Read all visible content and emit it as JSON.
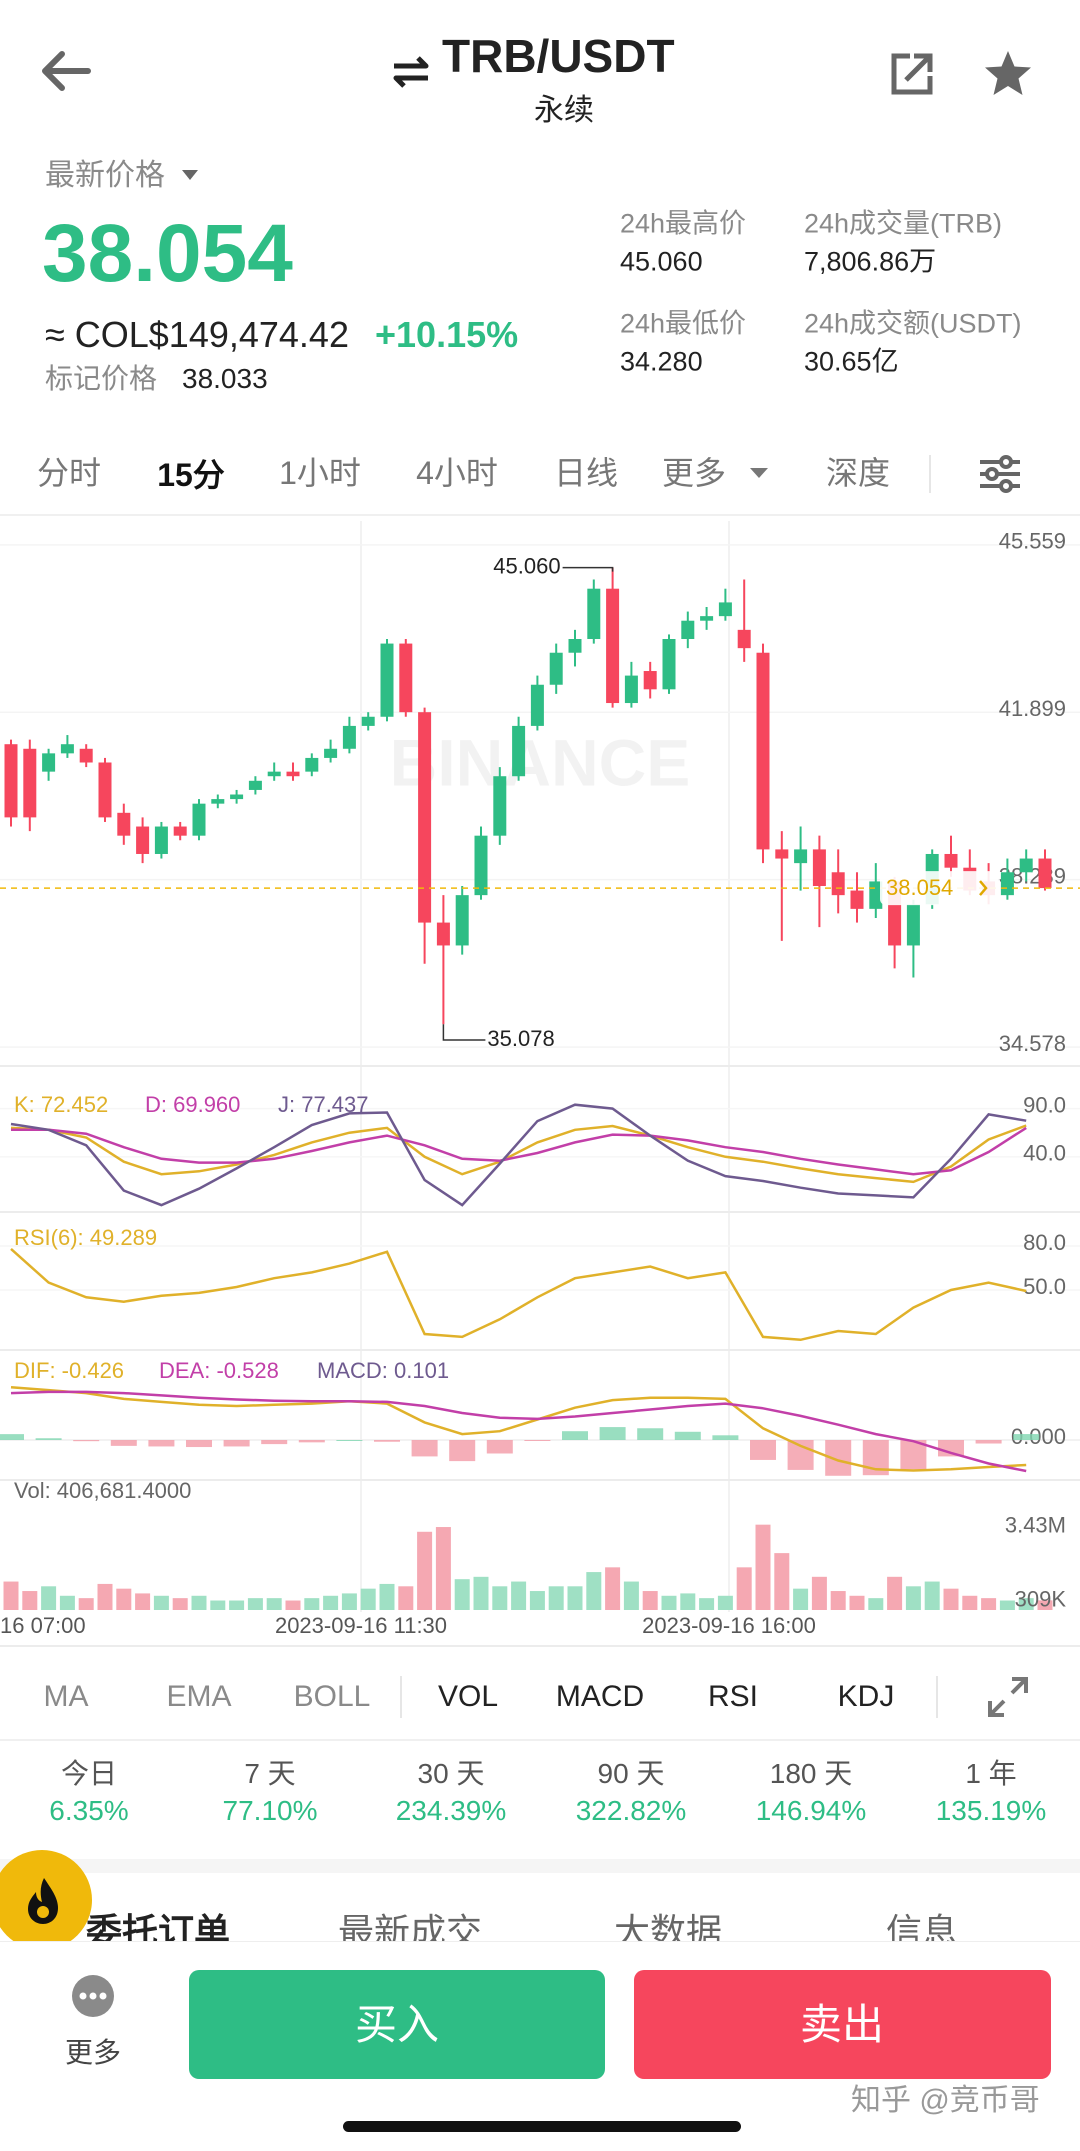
{
  "header": {
    "title": "TRB/USDT",
    "subtitle": "永续"
  },
  "ticker": {
    "label": "最新价格",
    "price": "38.054",
    "fiat": "≈ COL$149,474.42",
    "change": "+10.15%",
    "mark_label": "标记价格",
    "mark_price": "38.033"
  },
  "stats": [
    {
      "label": "24h最高价",
      "value": "45.060"
    },
    {
      "label": "24h成交量(TRB)",
      "value": "7,806.86万"
    },
    {
      "label": "24h最低价",
      "value": "34.280"
    },
    {
      "label": "24h成交额(USDT)",
      "value": "30.65亿"
    }
  ],
  "timeframes": [
    "分时",
    "15分",
    "1小时",
    "4小时",
    "日线",
    "更多",
    "深度"
  ],
  "chart_data": {
    "type": "candlestick",
    "watermark": "BINANCE",
    "up_color": "#2ebd85",
    "down_color": "#f6465d",
    "ylim": [
      34.23,
      46.08
    ],
    "yticks": [
      45.559,
      41.899,
      38.239,
      34.578
    ],
    "last_price": 38.054,
    "high_label": {
      "value": 45.06,
      "label": "45.060"
    },
    "low_label": {
      "value": 35.078,
      "label": "35.078"
    },
    "x_labels": [
      "16 07:00",
      "2023-09-16 11:30",
      "2023-09-16 16:00"
    ],
    "candles": [
      {
        "open": 41.2,
        "high": 41.3,
        "low": 39.4,
        "close": 39.6
      },
      {
        "open": 41.1,
        "high": 41.3,
        "low": 39.3,
        "close": 39.6
      },
      {
        "open": 40.6,
        "high": 41.1,
        "low": 40.4,
        "close": 41.0
      },
      {
        "open": 41.0,
        "high": 41.4,
        "low": 40.9,
        "close": 41.2
      },
      {
        "open": 41.1,
        "high": 41.2,
        "low": 40.7,
        "close": 40.8
      },
      {
        "open": 40.8,
        "high": 40.9,
        "low": 39.5,
        "close": 39.6
      },
      {
        "open": 39.7,
        "high": 39.9,
        "low": 39.0,
        "close": 39.2
      },
      {
        "open": 39.4,
        "high": 39.6,
        "low": 38.6,
        "close": 38.8
      },
      {
        "open": 38.8,
        "high": 39.5,
        "low": 38.7,
        "close": 39.4
      },
      {
        "open": 39.4,
        "high": 39.5,
        "low": 39.1,
        "close": 39.2
      },
      {
        "open": 39.2,
        "high": 40.0,
        "low": 39.1,
        "close": 39.9
      },
      {
        "open": 39.9,
        "high": 40.1,
        "low": 39.8,
        "close": 40.0
      },
      {
        "open": 40.0,
        "high": 40.2,
        "low": 39.9,
        "close": 40.1
      },
      {
        "open": 40.2,
        "high": 40.5,
        "low": 40.1,
        "close": 40.4
      },
      {
        "open": 40.5,
        "high": 40.8,
        "low": 40.4,
        "close": 40.6
      },
      {
        "open": 40.6,
        "high": 40.8,
        "low": 40.4,
        "close": 40.5
      },
      {
        "open": 40.6,
        "high": 41.0,
        "low": 40.5,
        "close": 40.9
      },
      {
        "open": 40.9,
        "high": 41.3,
        "low": 40.8,
        "close": 41.1
      },
      {
        "open": 41.1,
        "high": 41.8,
        "low": 41.0,
        "close": 41.6
      },
      {
        "open": 41.6,
        "high": 41.9,
        "low": 41.5,
        "close": 41.8
      },
      {
        "open": 41.8,
        "high": 43.5,
        "low": 41.7,
        "close": 43.4
      },
      {
        "open": 43.4,
        "high": 43.5,
        "low": 41.8,
        "close": 41.9
      },
      {
        "open": 41.9,
        "high": 42.0,
        "low": 36.4,
        "close": 37.3
      },
      {
        "open": 37.3,
        "high": 37.9,
        "low": 35.078,
        "close": 36.8
      },
      {
        "open": 36.8,
        "high": 38.1,
        "low": 36.6,
        "close": 37.9
      },
      {
        "open": 37.9,
        "high": 39.4,
        "low": 37.8,
        "close": 39.2
      },
      {
        "open": 39.2,
        "high": 40.7,
        "low": 39.0,
        "close": 40.5
      },
      {
        "open": 40.5,
        "high": 41.8,
        "low": 40.4,
        "close": 41.6
      },
      {
        "open": 41.6,
        "high": 42.7,
        "low": 41.5,
        "close": 42.5
      },
      {
        "open": 42.5,
        "high": 43.4,
        "low": 42.3,
        "close": 43.2
      },
      {
        "open": 43.2,
        "high": 43.7,
        "low": 42.9,
        "close": 43.5
      },
      {
        "open": 43.5,
        "high": 44.8,
        "low": 43.4,
        "close": 44.6
      },
      {
        "open": 44.6,
        "high": 45.06,
        "low": 42.0,
        "close": 42.1
      },
      {
        "open": 42.1,
        "high": 43.0,
        "low": 42.0,
        "close": 42.7
      },
      {
        "open": 42.8,
        "high": 43.0,
        "low": 42.2,
        "close": 42.4
      },
      {
        "open": 42.4,
        "high": 43.6,
        "low": 42.3,
        "close": 43.5
      },
      {
        "open": 43.5,
        "high": 44.1,
        "low": 43.3,
        "close": 43.9
      },
      {
        "open": 43.9,
        "high": 44.2,
        "low": 43.7,
        "close": 44.0
      },
      {
        "open": 44.0,
        "high": 44.6,
        "low": 43.9,
        "close": 44.3
      },
      {
        "open": 43.7,
        "high": 44.8,
        "low": 43.0,
        "close": 43.3
      },
      {
        "open": 43.2,
        "high": 43.4,
        "low": 38.6,
        "close": 38.9
      },
      {
        "open": 38.9,
        "high": 39.3,
        "low": 36.9,
        "close": 38.7
      },
      {
        "open": 38.6,
        "high": 39.4,
        "low": 38.0,
        "close": 38.9
      },
      {
        "open": 38.9,
        "high": 39.2,
        "low": 37.2,
        "close": 38.1
      },
      {
        "open": 38.4,
        "high": 38.9,
        "low": 37.5,
        "close": 37.9
      },
      {
        "open": 38.0,
        "high": 38.4,
        "low": 37.3,
        "close": 37.6
      },
      {
        "open": 37.6,
        "high": 38.6,
        "low": 37.4,
        "close": 38.2
      },
      {
        "open": 38.2,
        "high": 38.3,
        "low": 36.3,
        "close": 36.8
      },
      {
        "open": 36.8,
        "high": 37.8,
        "low": 36.1,
        "close": 37.7
      },
      {
        "open": 37.7,
        "high": 38.9,
        "low": 37.6,
        "close": 38.8
      },
      {
        "open": 38.8,
        "high": 39.2,
        "low": 38.3,
        "close": 38.5
      },
      {
        "open": 38.5,
        "high": 38.9,
        "low": 37.9,
        "close": 38.0
      },
      {
        "open": 38.2,
        "high": 38.6,
        "low": 37.7,
        "close": 37.9
      },
      {
        "open": 37.9,
        "high": 38.7,
        "low": 37.8,
        "close": 38.4
      },
      {
        "open": 38.4,
        "high": 38.9,
        "low": 38.2,
        "close": 38.7
      },
      {
        "open": 38.7,
        "high": 38.9,
        "low": 38.0,
        "close": 38.054
      }
    ],
    "kdj": {
      "ylim": [
        -12,
        130
      ],
      "yticks": [
        {
          "value": 90,
          "label": "90.0"
        },
        {
          "value": 40,
          "label": "40.0"
        }
      ],
      "series": [
        {
          "name": "K: 72.452",
          "color": "#e0b12a",
          "values": [
            70,
            68,
            60,
            35,
            22,
            25,
            32,
            42,
            55,
            65,
            70,
            40,
            22,
            35,
            55,
            68,
            72,
            62,
            50,
            40,
            35,
            28,
            22,
            18,
            14,
            30,
            58,
            72.452
          ]
        },
        {
          "name": "D: 69.960",
          "color": "#c23fa8",
          "values": [
            68,
            68,
            64,
            50,
            38,
            34,
            34,
            38,
            46,
            55,
            62,
            52,
            38,
            36,
            44,
            55,
            63,
            62,
            57,
            50,
            45,
            38,
            32,
            27,
            22,
            26,
            45,
            69.96
          ]
        },
        {
          "name": "J: 77.437",
          "color": "#6e5a8f",
          "values": [
            74,
            68,
            52,
            5,
            -10,
            7,
            28,
            50,
            73,
            85,
            86,
            16,
            -10,
            33,
            77,
            94,
            90,
            62,
            36,
            20,
            15,
            8,
            2,
            0,
            -2,
            38,
            84,
            77.437
          ]
        }
      ]
    },
    "rsi": {
      "ylim": [
        7.7,
        101.8
      ],
      "yticks": [
        {
          "value": 80,
          "label": "80.0"
        },
        {
          "value": 50,
          "label": "50.0"
        }
      ],
      "series": [
        {
          "name": "RSI(6): 49.289",
          "color": "#e0b12a",
          "values": [
            78,
            55,
            45,
            42,
            46,
            48,
            52,
            58,
            62,
            68,
            76,
            20,
            18,
            30,
            45,
            58,
            62,
            66,
            58,
            62,
            18,
            16,
            22,
            20,
            38,
            50,
            55,
            49.289
          ]
        }
      ]
    },
    "macd": {
      "ylim": [
        -0.716,
        1.5
      ],
      "yticks": [
        {
          "value": 0,
          "label": "0.000"
        }
      ],
      "series": [
        {
          "name": "DIF: -0.426",
          "color": "#e0b12a",
          "values": [
            0.9,
            0.85,
            0.8,
            0.7,
            0.65,
            0.6,
            0.58,
            0.6,
            0.62,
            0.66,
            0.62,
            0.3,
            0.1,
            0.15,
            0.35,
            0.55,
            0.68,
            0.72,
            0.72,
            0.7,
            0.2,
            -0.1,
            -0.35,
            -0.5,
            -0.52,
            -0.5,
            -0.46,
            -0.426
          ]
        },
        {
          "name": "DEA: -0.528",
          "color": "#c23fa8",
          "values": [
            0.8,
            0.82,
            0.82,
            0.8,
            0.76,
            0.72,
            0.69,
            0.67,
            0.66,
            0.66,
            0.65,
            0.58,
            0.46,
            0.38,
            0.36,
            0.4,
            0.46,
            0.52,
            0.58,
            0.62,
            0.54,
            0.41,
            0.26,
            0.1,
            -0.02,
            -0.22,
            -0.4,
            -0.528
          ]
        }
      ],
      "histogram": {
        "name": "MACD: 0.101",
        "name_color": "#6e5a8f",
        "up_color": "#7fd6b0",
        "down_color": "#f39aa6",
        "values": [
          0.1,
          0.03,
          -0.02,
          -0.1,
          -0.11,
          -0.12,
          -0.11,
          -0.07,
          -0.04,
          0,
          -0.03,
          -0.28,
          -0.36,
          -0.23,
          -0.01,
          0.15,
          0.22,
          0.2,
          0.14,
          0.08,
          -0.34,
          -0.51,
          -0.61,
          -0.6,
          -0.5,
          -0.28,
          -0.06,
          0.101
        ]
      }
    },
    "vol": {
      "name": "Vol: 406,681.4000",
      "ylim": [
        0,
        5400000
      ],
      "yticks": [
        {
          "value": 3430000,
          "label": "3.43M"
        },
        {
          "value": 309000,
          "label": "309K"
        }
      ],
      "up_color": "#9fe0c4",
      "down_color": "#f5a8b2",
      "values": [
        1200000,
        800000,
        1000000,
        600000,
        500000,
        1100000,
        900000,
        700000,
        600000,
        500000,
        600000,
        400000,
        400000,
        500000,
        500000,
        400000,
        500000,
        600000,
        700000,
        900000,
        1100000,
        1000000,
        3300000,
        3500000,
        1300000,
        1400000,
        1000000,
        1200000,
        800000,
        1000000,
        1000000,
        1600000,
        1800000,
        1200000,
        800000,
        600000,
        700000,
        500000,
        600000,
        1800000,
        3600000,
        2400000,
        900000,
        1400000,
        800000,
        600000,
        500000,
        1400000,
        1000000,
        1200000,
        900000,
        600000,
        500000,
        400000,
        500000,
        406681.4
      ]
    }
  },
  "indicators": [
    "MA",
    "EMA",
    "BOLL",
    "VOL",
    "MACD",
    "RSI",
    "KDJ"
  ],
  "performance": [
    {
      "label": "今日",
      "value": "6.35%"
    },
    {
      "label": "7 天",
      "value": "77.10%"
    },
    {
      "label": "30 天",
      "value": "234.39%"
    },
    {
      "label": "90 天",
      "value": "322.82%"
    },
    {
      "label": "180 天",
      "value": "146.94%"
    },
    {
      "label": "1 年",
      "value": "135.19%"
    }
  ],
  "order_tabs": [
    "委托订单",
    "最新成交",
    "大数据",
    "信息"
  ],
  "actions": {
    "more": "更多",
    "buy": "买入",
    "sell": "卖出"
  },
  "watermark": "知乎 @竞币哥"
}
